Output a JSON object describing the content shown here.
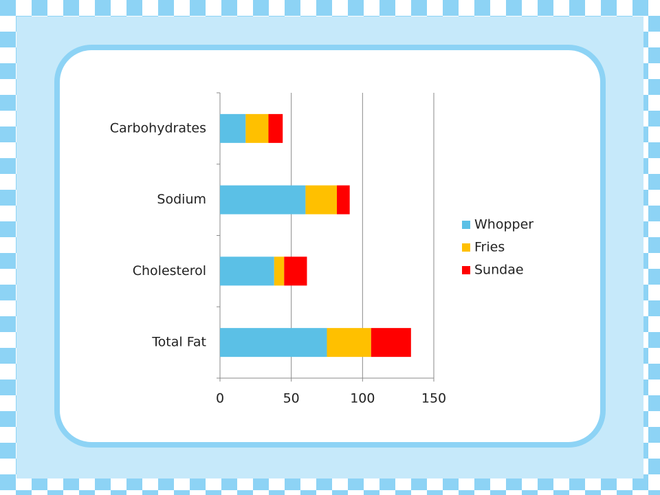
{
  "chart_data": {
    "type": "stacked-bar-horizontal",
    "categories": [
      "Total Fat",
      "Cholesterol",
      "Sodium",
      "Carbohydrates"
    ],
    "series": [
      {
        "name": "Whopper",
        "color": "#5bc0e6",
        "values": [
          75,
          38,
          60,
          18
        ]
      },
      {
        "name": "Fries",
        "color": "#ffc000",
        "values": [
          31,
          7,
          22,
          16
        ]
      },
      {
        "name": "Sundae",
        "color": "#ff0000",
        "values": [
          28,
          16,
          9,
          10
        ]
      }
    ],
    "xlim": [
      0,
      150
    ],
    "xticks": [
      0,
      50,
      100,
      150
    ],
    "grid": true,
    "legend": "right"
  }
}
